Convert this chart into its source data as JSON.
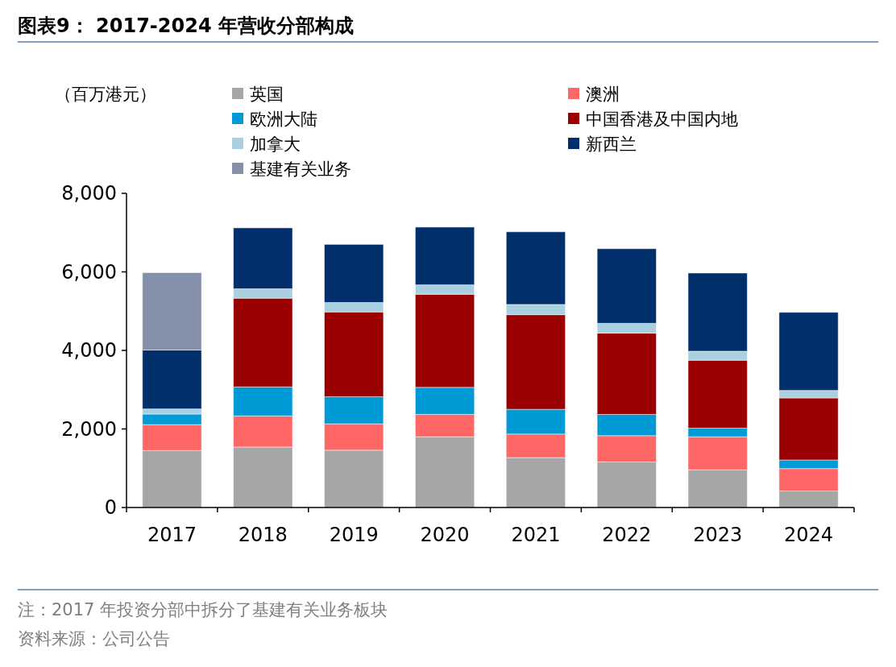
{
  "chart_data": {
    "type": "bar",
    "title": "图表9： 2017-2024 年营收分部构成",
    "ylabel": "（百万港元）",
    "categories": [
      "2017",
      "2018",
      "2019",
      "2020",
      "2021",
      "2022",
      "2023",
      "2024"
    ],
    "stacked": true,
    "legend": "top",
    "series": [
      {
        "name": "英国",
        "color": "#a6a6a6",
        "values": [
          1450,
          1540,
          1460,
          1800,
          1270,
          1160,
          960,
          420
        ]
      },
      {
        "name": "澳洲",
        "color": "#ff6666",
        "values": [
          660,
          790,
          670,
          570,
          600,
          670,
          840,
          570
        ]
      },
      {
        "name": "欧洲大陆",
        "color": "#009bd6",
        "values": [
          270,
          740,
          690,
          690,
          630,
          540,
          220,
          220
        ]
      },
      {
        "name": "中国香港及中国内地",
        "color": "#9b0000",
        "values": [
          null,
          2260,
          2160,
          2370,
          2410,
          2070,
          1730,
          1580
        ]
      },
      {
        "name": "加拿大",
        "color": "#a9d0e0",
        "values": [
          130,
          240,
          240,
          240,
          260,
          250,
          230,
          190
        ]
      },
      {
        "name": "新西兰",
        "color": "#002f6c",
        "values": [
          1500,
          1550,
          1480,
          1470,
          1850,
          1900,
          1990,
          1990
        ]
      },
      {
        "name": "基建有关业务",
        "color": "#8490aa",
        "values": [
          1970,
          null,
          null,
          null,
          null,
          null,
          null,
          null
        ]
      }
    ],
    "ylim": [
      0,
      8000
    ],
    "yticks": [
      0,
      {
        "value": 2000,
        "label": "2,000"
      },
      {
        "value": 4000,
        "label": "4,000"
      },
      {
        "value": 6000,
        "label": "6,000"
      },
      {
        "value": 8000,
        "label": "8,000"
      }
    ],
    "annotations": [
      "注：2017 年投资分部中拆分了基建有关业务板块",
      "资料来源：公司公告"
    ]
  }
}
